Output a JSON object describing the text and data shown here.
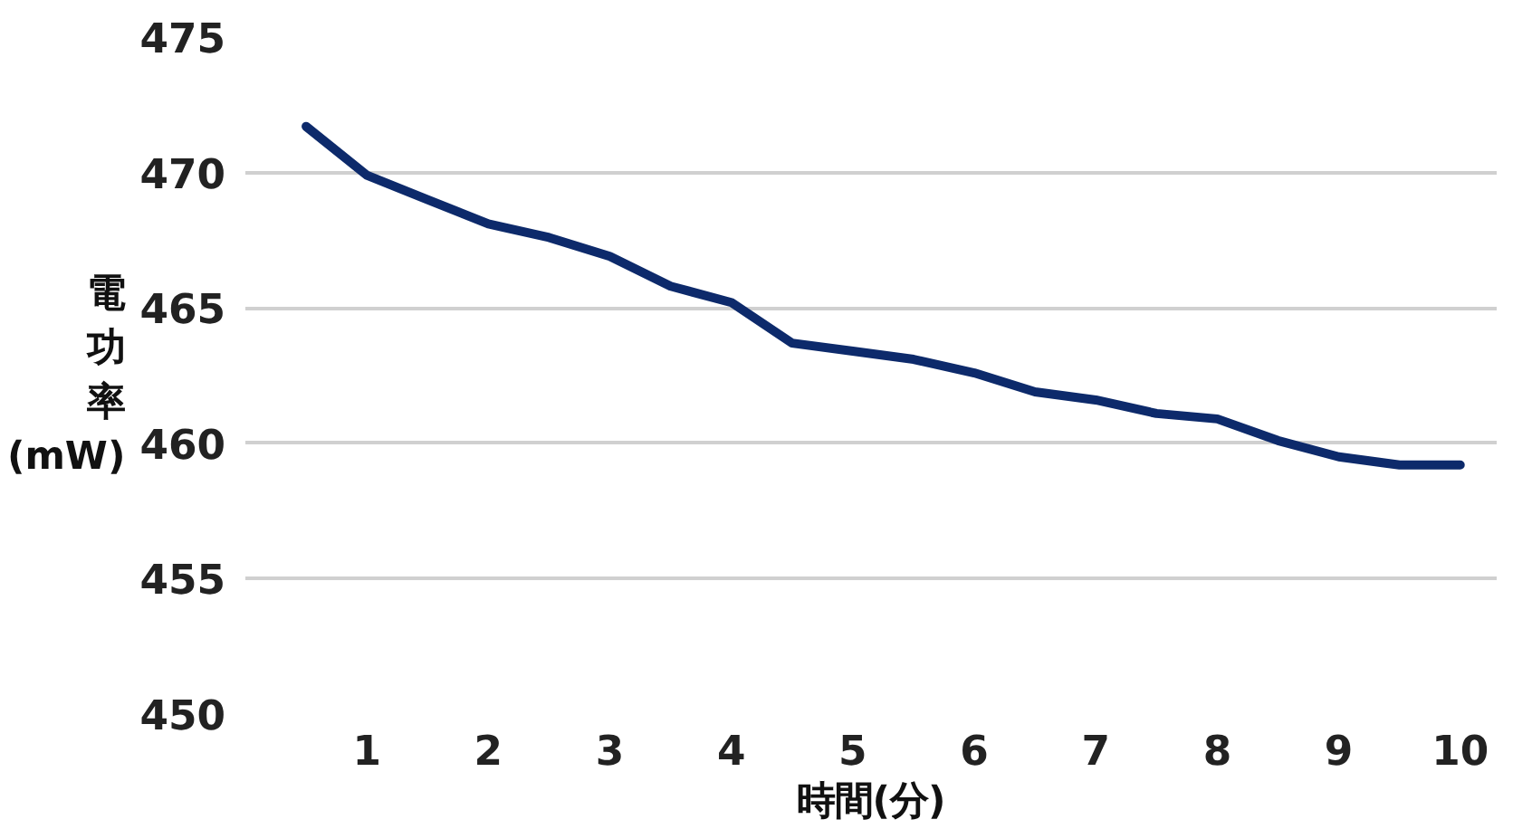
{
  "chart_data": {
    "type": "line",
    "xlabel": "時間(分)",
    "ylabel": "電功率(mW)",
    "x": [
      0.5,
      1,
      1.5,
      2,
      2.5,
      3,
      3.5,
      4,
      4.5,
      5,
      5.5,
      6,
      6.5,
      7,
      7.5,
      8,
      8.5,
      9,
      9.5,
      10
    ],
    "series": [
      {
        "color": "#0d2a6b",
        "values": [
          471.7,
          469.9,
          469.0,
          468.1,
          467.6,
          466.9,
          465.8,
          465.2,
          463.7,
          463.4,
          463.1,
          462.6,
          461.9,
          461.6,
          461.1,
          460.9,
          460.1,
          459.5,
          459.2,
          459.2
        ]
      }
    ],
    "xlim": [
      0,
      10.3
    ],
    "xticks": [
      1,
      2,
      3,
      4,
      5,
      6,
      7,
      8,
      9,
      10
    ],
    "ylim": [
      450,
      475
    ],
    "yticks": [
      450,
      455,
      460,
      465,
      470,
      475
    ],
    "grid": "y",
    "marker": "none",
    "line_style": "solid"
  }
}
